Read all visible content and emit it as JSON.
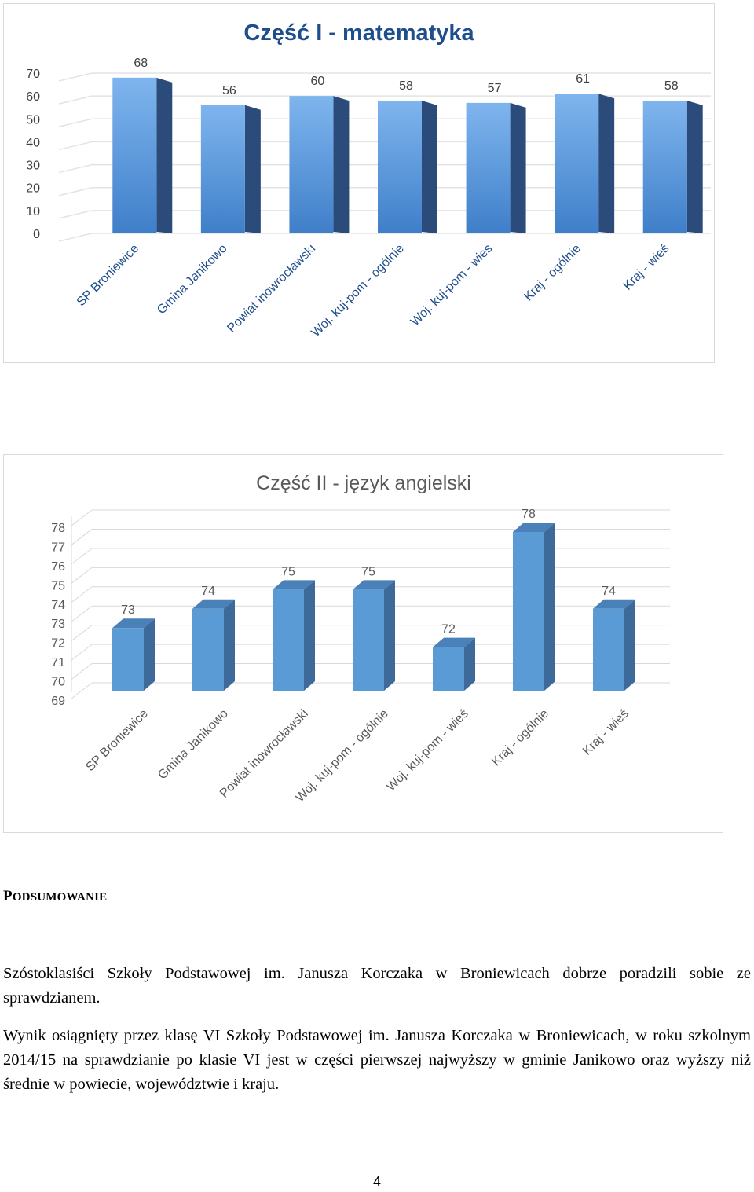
{
  "chart_data": [
    {
      "type": "bar",
      "title": "Część I - matematyka",
      "categories": [
        "SP Broniewice",
        "Gmina Janikowo",
        "Powiat inowrocławski",
        "Woj. kuj-pom - ogólnie",
        "Woj. kuj-pom - wieś",
        "Kraj - ogólnie",
        "Kraj - wieś"
      ],
      "values": [
        68,
        56,
        60,
        58,
        57,
        61,
        58
      ],
      "yticks": [
        0,
        10,
        20,
        30,
        40,
        50,
        60,
        70
      ],
      "ylim": [
        0,
        70
      ],
      "xlabel": "",
      "ylabel": "",
      "grid": true,
      "colors": {
        "front_top": "#7fb5ee",
        "front_bottom": "#3f7fc9",
        "side": "#2b4c7a",
        "title": "#1f4e8c",
        "grid": "#e3e3e3",
        "tick_text": "#404040"
      }
    },
    {
      "type": "bar",
      "title": "Część II - język angielski",
      "categories": [
        "SP Broniewice",
        "Gmina Janikowo",
        "Powiat inowrocławski",
        "Woj. kuj-pom - ogólnie",
        "Woj. kuj-pom - wieś",
        "Kraj - ogólnie",
        "Kraj - wieś"
      ],
      "values": [
        73,
        74,
        75,
        75,
        72,
        78,
        74
      ],
      "yticks": [
        69,
        70,
        71,
        72,
        73,
        74,
        75,
        76,
        77,
        78
      ],
      "ylim": [
        69,
        78
      ],
      "xlabel": "",
      "ylabel": "",
      "grid": true,
      "colors": {
        "front": "#5b9bd5",
        "side": "#3e6a99",
        "top": "#4a81b8",
        "title": "#595959",
        "grid": "#d9d9d9",
        "tick_text": "#595959"
      }
    }
  ],
  "summary": {
    "heading_first": "P",
    "heading_rest": "ODSUMOWANIE",
    "paragraph_1": "Szóstoklasiści Szkoły Podstawowej im. Janusza Korczaka w Broniewicach dobrze poradzili sobie ze sprawdzianem.",
    "paragraph_2": "Wynik osiągnięty przez klasę VI Szkoły Podstawowej im. Janusza Korczaka w Broniewicach, w roku szkolnym 2014/15 na sprawdzianie po klasie VI jest w części pierwszej najwyższy w gminie Janikowo oraz wyższy niż średnie w powiecie, województwie i kraju."
  },
  "page_number": "4"
}
